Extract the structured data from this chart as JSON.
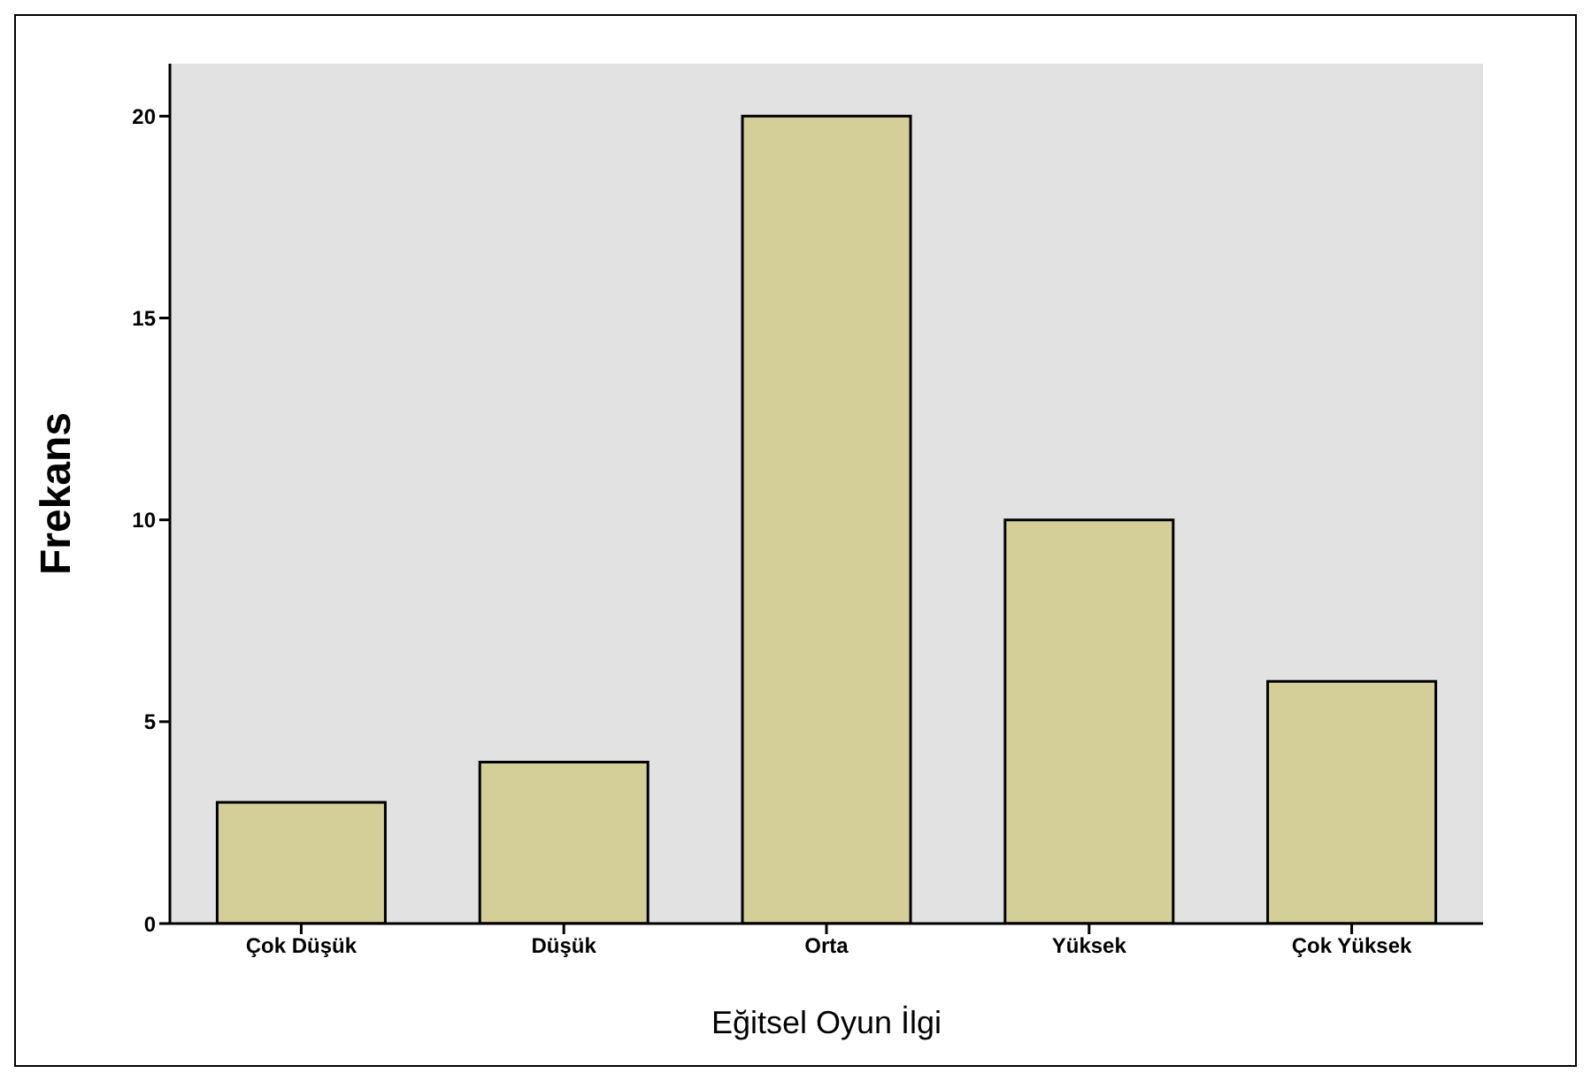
{
  "chart_data": {
    "type": "bar",
    "xlabel": "Eğitsel Oyun İlgi",
    "ylabel": "Frekans",
    "categories": [
      "Çok Düşük",
      "Düşük",
      "Orta",
      "Yüksek",
      "Çok Yüksek"
    ],
    "values": [
      3,
      4,
      20,
      10,
      6
    ],
    "color": "#d4cf99",
    "ylim": [
      0,
      21.3
    ],
    "yticks": [
      0,
      5,
      10,
      15,
      20
    ],
    "grid": false
  }
}
